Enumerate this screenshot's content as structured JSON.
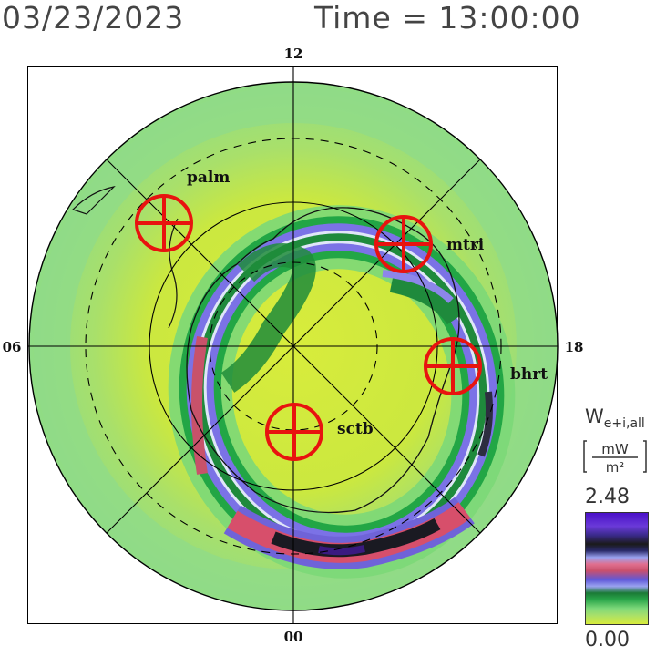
{
  "header": {
    "date": "03/23/2023",
    "time": "Time = 13:00:00"
  },
  "map": {
    "mlt_labels": {
      "top": "12",
      "bottom": "00",
      "left": "06",
      "right": "18"
    },
    "stations": [
      {
        "name": "palm"
      },
      {
        "name": "mtri"
      },
      {
        "name": "bhrt"
      },
      {
        "name": "sctb"
      }
    ],
    "marker_color": "#e8130f",
    "label_color": "#111111"
  },
  "colorbar": {
    "title": "W",
    "subscript": "e+i,all",
    "unit_numerator": "mW",
    "unit_denominator": "m²",
    "max": "2.48",
    "min": "0.00"
  }
}
